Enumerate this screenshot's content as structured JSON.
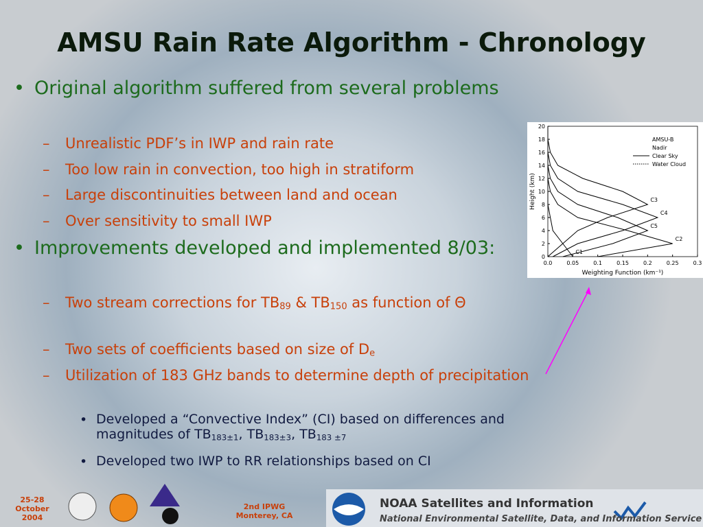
{
  "title": "AMSU Rain Rate Algorithm - Chronology",
  "bullets": [
    {
      "level": 1,
      "runs": [
        {
          "text": "Original algorithm suffered from several problems"
        }
      ]
    },
    {
      "level": 2,
      "runs": [
        {
          "text": "Unrealistic PDF’s in IWP and rain rate"
        }
      ]
    },
    {
      "level": 2,
      "runs": [
        {
          "text": "Too low rain in convection, too high in stratiform"
        }
      ]
    },
    {
      "level": 2,
      "runs": [
        {
          "text": "Large discontinuities between land and ocean"
        }
      ]
    },
    {
      "level": 2,
      "runs": [
        {
          "text": "Over sensitivity to small IWP"
        }
      ]
    },
    {
      "level": 1,
      "runs": [
        {
          "text": "Improvements developed and implemented 8/03:"
        }
      ]
    },
    {
      "level": 2,
      "runs": [
        {
          "text": "Two stream corrections for TB"
        },
        {
          "sub": "89"
        },
        {
          "text": " & TB"
        },
        {
          "sub": "150"
        },
        {
          "text": " as function of Θ"
        }
      ]
    },
    {
      "level": 2,
      "runs": [
        {
          "text": "Two sets of coefficients based on size of D"
        },
        {
          "sub": "e"
        }
      ]
    },
    {
      "level": 2,
      "runs": [
        {
          "text": "Utilization of 183 GHz bands to determine depth of precipitation"
        }
      ]
    },
    {
      "level": 3,
      "runs": [
        {
          "text": "Developed a “Convective Index” (CI) based on differences and magnitudes of TB"
        },
        {
          "sub": "183±1"
        },
        {
          "text": ", TB"
        },
        {
          "sub": "183±3"
        },
        {
          "text": ", TB"
        },
        {
          "sub": "183 ±7"
        }
      ]
    },
    {
      "level": 3,
      "runs": [
        {
          "text": "Developed two IWP to RR relationships based on CI"
        }
      ]
    }
  ],
  "footer": {
    "date": [
      "25-28",
      "October",
      "2004"
    ],
    "meeting": [
      "2nd IPWG",
      "Monterey, CA"
    ],
    "noaa_title": "NOAA Satellites and Information",
    "noaa_subtitle": "National Environmental Satellite, Data, and Information Service"
  },
  "chart_data": {
    "type": "line",
    "legend_title": [
      "AMSU-B",
      "Nadir"
    ],
    "line_styles": [
      {
        "name": "Clear Sky",
        "dashed": false
      },
      {
        "name": "Water Cloud",
        "dashed": true
      }
    ],
    "xlabel": "Weighting Function (km⁻¹)",
    "ylabel": "Height (km)",
    "heights": [
      0,
      2,
      4,
      6,
      8,
      10,
      12,
      14,
      16,
      18,
      20
    ],
    "series": [
      {
        "name": "C1",
        "color": "#000000",
        "values": [
          0.05,
          0.03,
          0.01,
          0.005,
          0,
          0,
          0,
          0,
          0,
          0,
          0
        ]
      },
      {
        "name": "C2",
        "color": "#000000",
        "values": [
          0.1,
          0.25,
          0.16,
          0.06,
          0.02,
          0.005,
          0,
          0,
          0,
          0,
          0
        ]
      },
      {
        "name": "C3",
        "color": "#000000",
        "values": [
          0,
          0.03,
          0.06,
          0.12,
          0.2,
          0.15,
          0.07,
          0.02,
          0.005,
          0,
          0
        ]
      },
      {
        "name": "C4",
        "color": "#000000",
        "values": [
          0.01,
          0.06,
          0.15,
          0.22,
          0.15,
          0.06,
          0.02,
          0.005,
          0,
          0,
          0
        ]
      },
      {
        "name": "C5",
        "color": "#000000",
        "values": [
          0.03,
          0.13,
          0.2,
          0.14,
          0.06,
          0.02,
          0.005,
          0,
          0,
          0,
          0
        ]
      }
    ],
    "xlim": [
      0,
      0.3
    ],
    "ylim": [
      0,
      20
    ],
    "xticks": [
      {
        "value": 0,
        "label": "0.0"
      },
      0.05,
      0.1,
      0.15,
      0.2,
      0.25,
      0.3
    ],
    "yticks": [
      0,
      2,
      4,
      6,
      8,
      10,
      12,
      14,
      16,
      18,
      20
    ]
  }
}
